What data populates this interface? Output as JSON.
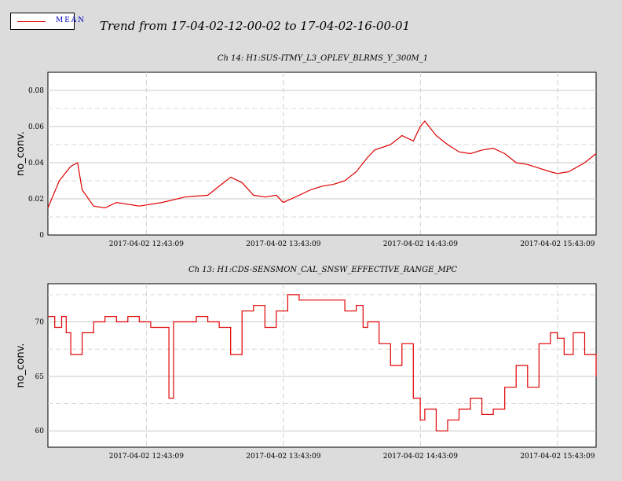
{
  "legend": {
    "label": "MEAN",
    "color": "#e00000",
    "label_color": "#0000c0"
  },
  "main_title": "Trend from 17-04-02-12-00-02 to 17-04-02-16-00-01",
  "chart_data": [
    {
      "type": "line",
      "title": "Ch 14: H1:SUS-ITMY_L3_OPLEV_BLRMS_Y_300M_1",
      "xlabel": "",
      "ylabel": "no_conv.",
      "x_tick_labels": [
        "2017-04-02 12:43:09",
        "2017-04-02 13:43:09",
        "2017-04-02 14:43:09",
        "2017-04-02 15:43:09"
      ],
      "x_range_minutes": [
        0,
        240
      ],
      "x_tick_minutes": [
        43.1,
        103.1,
        163.1,
        223.1
      ],
      "y_ticks": [
        0,
        0.02,
        0.04,
        0.06,
        0.08
      ],
      "y_tick_labels": [
        "0",
        "0.02",
        "0.04",
        "0.06",
        "0.08"
      ],
      "ylim": [
        0,
        0.09
      ],
      "grid": true,
      "series": [
        {
          "color": "#e00000",
          "x_minutes": [
            0,
            5,
            10,
            13,
            15,
            20,
            25,
            30,
            40,
            50,
            60,
            70,
            75,
            80,
            85,
            90,
            95,
            100,
            103,
            110,
            115,
            120,
            125,
            130,
            135,
            140,
            143,
            150,
            155,
            160,
            163,
            165,
            170,
            175,
            180,
            185,
            190,
            195,
            200,
            205,
            210,
            215,
            220,
            223,
            228,
            235,
            240
          ],
          "values": [
            0.015,
            0.03,
            0.038,
            0.04,
            0.025,
            0.016,
            0.015,
            0.018,
            0.016,
            0.018,
            0.021,
            0.022,
            0.027,
            0.032,
            0.029,
            0.022,
            0.021,
            0.022,
            0.018,
            0.022,
            0.025,
            0.027,
            0.028,
            0.03,
            0.035,
            0.043,
            0.047,
            0.05,
            0.055,
            0.052,
            0.06,
            0.063,
            0.055,
            0.05,
            0.046,
            0.045,
            0.047,
            0.048,
            0.045,
            0.04,
            0.039,
            0.037,
            0.035,
            0.034,
            0.035,
            0.04,
            0.045
          ]
        }
      ]
    },
    {
      "type": "line",
      "title": "Ch 13: H1:CDS-SENSMON_CAL_SNSW_EFFECTIVE_RANGE_MPC",
      "xlabel": "",
      "ylabel": "no_conv.",
      "x_tick_labels": [
        "2017-04-02 12:43:09",
        "2017-04-02 13:43:09",
        "2017-04-02 14:43:09",
        "2017-04-02 15:43:09"
      ],
      "x_range_minutes": [
        0,
        240
      ],
      "x_tick_minutes": [
        43.1,
        103.1,
        163.1,
        223.1
      ],
      "y_ticks": [
        60,
        65,
        70
      ],
      "y_tick_labels": [
        "60",
        "65",
        "70"
      ],
      "ylim": [
        58.5,
        73.5
      ],
      "grid": true,
      "series": [
        {
          "color": "#e00000",
          "x_minutes": [
            0,
            3,
            6,
            8,
            10,
            15,
            20,
            25,
            30,
            35,
            40,
            45,
            50,
            53,
            55,
            60,
            65,
            70,
            75,
            80,
            85,
            90,
            95,
            100,
            105,
            110,
            115,
            120,
            125,
            130,
            135,
            138,
            140,
            145,
            150,
            155,
            160,
            163,
            165,
            170,
            175,
            180,
            185,
            190,
            195,
            200,
            205,
            210,
            215,
            220,
            223,
            226,
            230,
            235,
            240
          ],
          "values": [
            70.5,
            69.5,
            70.5,
            69,
            67,
            69,
            70,
            70.5,
            70,
            70.5,
            70,
            69.5,
            69.5,
            63,
            70,
            70,
            70.5,
            70,
            69.5,
            67,
            71,
            71.5,
            69.5,
            71,
            72.5,
            72,
            72,
            72,
            72,
            71,
            71.5,
            69.5,
            70,
            68,
            66,
            68,
            63,
            61,
            62,
            60,
            61,
            62,
            63,
            61.5,
            62,
            64,
            66,
            64,
            68,
            69,
            68.5,
            67,
            69,
            67,
            65
          ]
        }
      ]
    }
  ]
}
